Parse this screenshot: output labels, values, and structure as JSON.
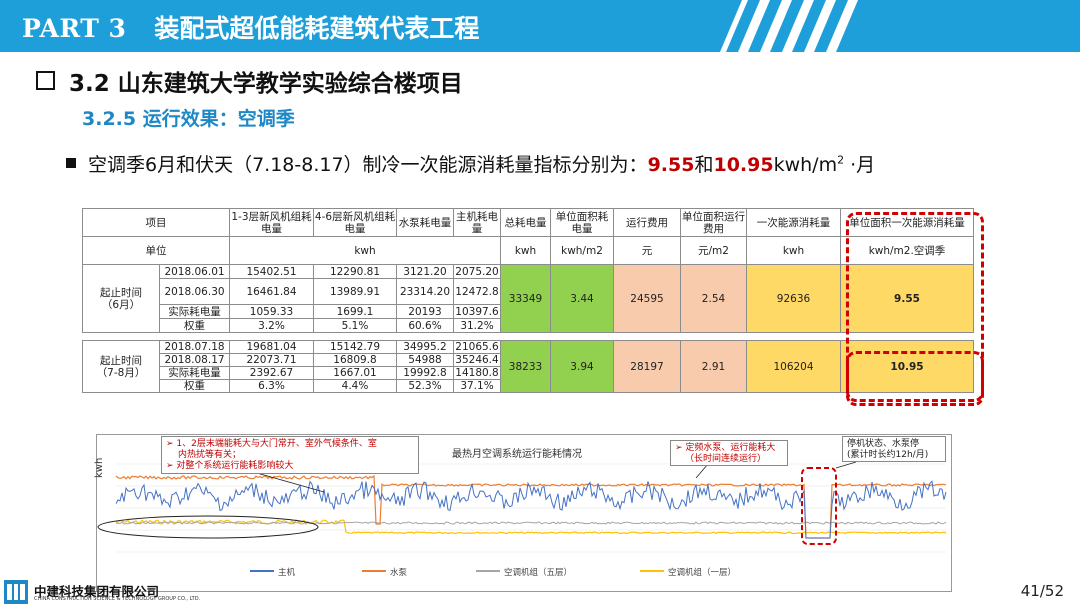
{
  "header": {
    "part": "PART 3",
    "title": "装配式超低能耗建筑代表工程",
    "color": "#1e9fda"
  },
  "section": {
    "title": "3.2 山东建筑大学教学实验综合楼项目"
  },
  "subsection": {
    "title": "3.2.5 运行效果：空调季"
  },
  "bullet": {
    "prefix": "空调季6月和伏天（7.18-8.17）制冷一次能源消耗量指标分别为：",
    "value1": "9.55",
    "mid": "和",
    "value2": "10.95",
    "unit": "kwh/m",
    "sup": "2",
    "suffix": " ·月"
  },
  "table": {
    "head": [
      "项目",
      "1-3层新风机组耗电量",
      "4-6层新风机组耗电量",
      "水泵耗电量",
      "主机耗电量",
      "总耗电量",
      "单位面积耗电量",
      "运行费用",
      "单位面积运行费用",
      "一次能源消耗量",
      "单位面积一次能源消耗量"
    ],
    "units": [
      "单位",
      "kwh",
      "kwh",
      "kwh/m2",
      "元",
      "元/m2",
      "kwh",
      "kwh/m2.空调季"
    ],
    "g1": {
      "label": "起止时间\n（6月）",
      "rows": [
        [
          "2018.06.01",
          "15402.51",
          "12290.81",
          "3121.20",
          "2075.20"
        ],
        [
          "2018.06.30",
          "16461.84",
          "13989.91",
          "23314.20",
          "12472.8"
        ],
        [
          "实际耗电量",
          "1059.33",
          "1699.1",
          "20193",
          "10397.6"
        ],
        [
          "权重",
          "3.2%",
          "5.1%",
          "60.6%",
          "31.2%"
        ]
      ],
      "summary": [
        "33349",
        "3.44",
        "24595",
        "2.54",
        "92636",
        "9.55"
      ]
    },
    "g2": {
      "label": "起止时间\n（7-8月）",
      "rows": [
        [
          "2018.07.18",
          "19681.04",
          "15142.79",
          "34995.2",
          "21065.6"
        ],
        [
          "2018.08.17",
          "22073.71",
          "16809.8",
          "54988",
          "35246.4"
        ],
        [
          "实际耗电量",
          "2392.67",
          "1667.01",
          "19992.8",
          "14180.8"
        ],
        [
          "权重",
          "6.3%",
          "4.4%",
          "52.3%",
          "37.1%"
        ]
      ],
      "summary": [
        "38233",
        "3.94",
        "28197",
        "2.91",
        "106204",
        "10.95"
      ]
    },
    "colors": {
      "green": "#92d050",
      "peach": "#f8cbad",
      "yellow": "#ffd966",
      "highlight": "#d00000"
    }
  },
  "chart": {
    "title": "最热月空调系统运行能耗情况",
    "ylabel": "kwh",
    "callout1": {
      "line1": "➢ 1、2层末端能耗大与大门常开、室外气候条件、室",
      "line2": "内热扰等有关；",
      "line3": "➢ 对整个系统运行能耗影响较大"
    },
    "callout2": {
      "line1": "➢ 定频水泵、运行能耗大",
      "line2": "（长时间连续运行）"
    },
    "callout3": {
      "line1": "停机状态、水泵停",
      "line2": "(累计时长约12h/月)"
    },
    "legend": [
      {
        "name": "主机",
        "color": "#4472c4"
      },
      {
        "name": "水泵",
        "color": "#ed7d31"
      },
      {
        "name": "空调机组（五层）",
        "color": "#a5a5a5"
      },
      {
        "name": "空调机组（一层）",
        "color": "#ffc000"
      }
    ]
  },
  "footer": {
    "company": "中建科技集团有限公司",
    "company_en": "CHINA CONSTRUCTION SCIENCE & TECHNOLOGY GROUP CO., LTD.",
    "page": "41/52"
  }
}
